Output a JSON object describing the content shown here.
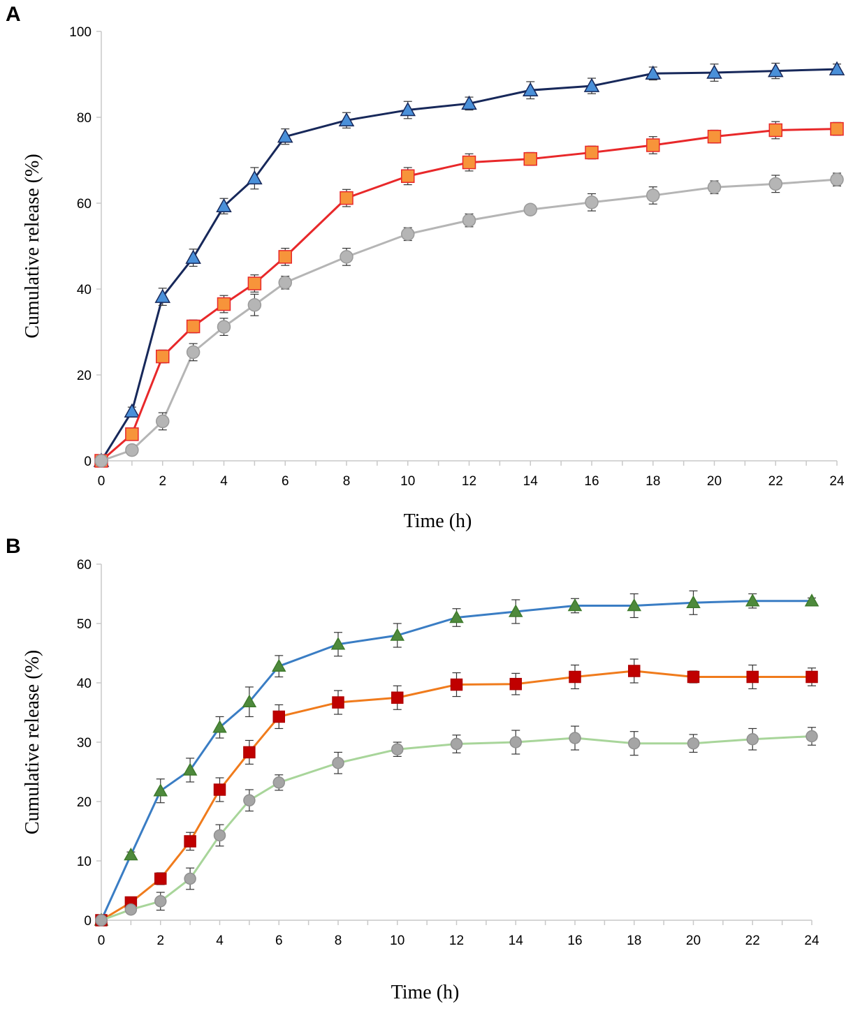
{
  "chart_data": [
    {
      "panel": "A",
      "type": "line",
      "xlabel": "Time (h)",
      "ylabel": "Cumulative release (%)",
      "xlim": [
        0,
        24
      ],
      "ylim": [
        0,
        100
      ],
      "xticks": [
        0,
        2,
        4,
        6,
        8,
        10,
        12,
        14,
        16,
        18,
        20,
        22,
        24
      ],
      "yticks": [
        0,
        20,
        40,
        60,
        80,
        100
      ],
      "grid": false,
      "x": [
        0,
        1,
        2,
        3,
        4,
        5,
        6,
        8,
        10,
        12,
        14,
        16,
        18,
        20,
        22,
        24
      ],
      "series": [
        {
          "name": "triangle-series",
          "marker": "triangle",
          "line_color": "#17285a",
          "marker_fill": "#4a90d9",
          "marker_stroke": "#17285a",
          "values": [
            0,
            11.5,
            38.2,
            47.3,
            59.3,
            65.8,
            75.5,
            79.3,
            81.7,
            83.2,
            86.3,
            87.3,
            90.2,
            90.4,
            90.8,
            91.2
          ],
          "errors": [
            0,
            1.0,
            2.0,
            2.0,
            1.8,
            2.5,
            1.8,
            1.8,
            2.0,
            1.5,
            2.0,
            1.8,
            1.5,
            2.0,
            1.8,
            1.2
          ]
        },
        {
          "name": "square-series",
          "marker": "square",
          "line_color": "#e8282a",
          "marker_fill": "#f7943a",
          "marker_stroke": "#e8282a",
          "values": [
            0,
            6.2,
            24.3,
            31.3,
            36.5,
            41.3,
            47.5,
            61.2,
            66.3,
            69.5,
            70.3,
            71.8,
            73.5,
            75.5,
            77.0,
            77.3
          ],
          "errors": [
            0,
            1.0,
            1.5,
            1.5,
            2.0,
            2.0,
            2.0,
            2.0,
            2.0,
            2.0,
            1.5,
            1.5,
            2.0,
            1.5,
            2.0,
            1.5
          ]
        },
        {
          "name": "circle-series",
          "marker": "circle",
          "line_color": "#b5b5b5",
          "marker_fill": "#b5b5b5",
          "marker_stroke": "#9a9a9a",
          "values": [
            0,
            2.5,
            9.2,
            25.3,
            31.2,
            36.3,
            41.5,
            47.5,
            52.8,
            56.0,
            58.5,
            60.2,
            61.8,
            63.7,
            64.5,
            65.5
          ],
          "errors": [
            0,
            0.8,
            2.0,
            2.0,
            2.0,
            2.5,
            1.5,
            2.0,
            1.5,
            1.5,
            1.0,
            2.0,
            2.0,
            1.5,
            2.0,
            1.5
          ]
        }
      ]
    },
    {
      "panel": "B",
      "type": "line",
      "xlabel": "Time (h)",
      "ylabel": "Cumulative release (%)",
      "xlim": [
        0,
        24
      ],
      "ylim": [
        0,
        60
      ],
      "xticks": [
        0,
        2,
        4,
        6,
        8,
        10,
        12,
        14,
        16,
        18,
        20,
        22,
        24
      ],
      "yticks": [
        0,
        10,
        20,
        30,
        40,
        50,
        60
      ],
      "grid": false,
      "x": [
        0,
        1,
        2,
        3,
        4,
        5,
        6,
        8,
        10,
        12,
        14,
        16,
        18,
        20,
        22,
        24
      ],
      "series": [
        {
          "name": "triangle-series",
          "marker": "triangle",
          "line_color": "#3a7dc4",
          "marker_fill": "#4e8a3c",
          "marker_stroke": "#3e7a2c",
          "values": [
            0,
            11.0,
            21.8,
            25.3,
            32.5,
            36.8,
            42.8,
            46.5,
            48.0,
            51.0,
            52.0,
            53.0,
            53.0,
            53.5,
            53.8,
            53.8
          ],
          "errors": [
            0,
            0.5,
            2.0,
            2.0,
            1.8,
            2.5,
            1.8,
            2.0,
            2.0,
            1.5,
            2.0,
            1.2,
            2.0,
            2.0,
            1.2,
            0.5
          ]
        },
        {
          "name": "square-series",
          "marker": "square",
          "line_color": "#f07b1c",
          "marker_fill": "#c00000",
          "marker_stroke": "#b00000",
          "values": [
            0,
            3.0,
            7.0,
            13.3,
            22.0,
            28.3,
            34.3,
            36.7,
            37.5,
            39.7,
            39.8,
            41.0,
            42.0,
            41.0,
            41.0,
            41.0
          ],
          "errors": [
            0,
            0.5,
            1.0,
            1.5,
            2.0,
            2.0,
            2.0,
            2.0,
            2.0,
            2.0,
            1.8,
            2.0,
            2.0,
            1.0,
            2.0,
            1.5
          ]
        },
        {
          "name": "circle-series",
          "marker": "circle",
          "line_color": "#a8d59a",
          "marker_fill": "#a5a5a5",
          "marker_stroke": "#909090",
          "values": [
            0,
            1.8,
            3.2,
            7.0,
            14.3,
            20.2,
            23.2,
            26.5,
            28.8,
            29.7,
            30.0,
            30.7,
            29.8,
            29.8,
            30.5,
            31.0
          ],
          "errors": [
            0,
            0.5,
            1.5,
            1.8,
            1.8,
            1.8,
            1.3,
            1.8,
            1.2,
            1.5,
            2.0,
            2.0,
            2.0,
            1.5,
            1.8,
            1.5
          ]
        }
      ]
    }
  ]
}
